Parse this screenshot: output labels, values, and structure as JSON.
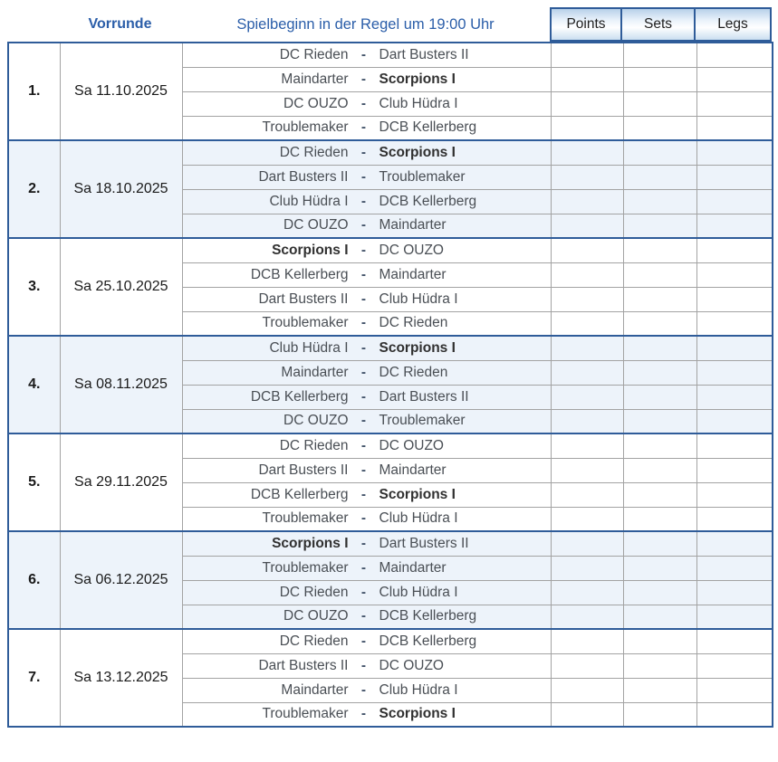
{
  "header": {
    "stage_label": "Vorrunde",
    "info_text": "Spielbeginn in der Regel um 19:00 Uhr",
    "score_columns": [
      "Points",
      "Sets",
      "Legs"
    ]
  },
  "separator": "-",
  "colors": {
    "accent_blue_text": "#2b5ea9",
    "block_border_blue": "#2f5c99",
    "grid_gray": "#a3a3a3",
    "shaded_row_blue": "#edf3fa"
  },
  "rounds": [
    {
      "number": "1.",
      "date": "Sa 11.10.2025",
      "matches": [
        {
          "home": "DC Rieden",
          "away": "Dart Busters II",
          "home_bold": false,
          "away_bold": false,
          "points": "",
          "sets": "",
          "legs": ""
        },
        {
          "home": "Maindarter",
          "away": "Scorpions I",
          "home_bold": false,
          "away_bold": true,
          "points": "",
          "sets": "",
          "legs": ""
        },
        {
          "home": "DC OUZO",
          "away": "Club Hüdra I",
          "home_bold": false,
          "away_bold": false,
          "points": "",
          "sets": "",
          "legs": ""
        },
        {
          "home": "Troublemaker",
          "away": "DCB Kellerberg",
          "home_bold": false,
          "away_bold": false,
          "points": "",
          "sets": "",
          "legs": ""
        }
      ]
    },
    {
      "number": "2.",
      "date": "Sa 18.10.2025",
      "matches": [
        {
          "home": "DC Rieden",
          "away": "Scorpions I",
          "home_bold": false,
          "away_bold": true,
          "points": "",
          "sets": "",
          "legs": ""
        },
        {
          "home": "Dart Busters II",
          "away": "Troublemaker",
          "home_bold": false,
          "away_bold": false,
          "points": "",
          "sets": "",
          "legs": ""
        },
        {
          "home": "Club Hüdra I",
          "away": "DCB Kellerberg",
          "home_bold": false,
          "away_bold": false,
          "points": "",
          "sets": "",
          "legs": ""
        },
        {
          "home": "DC OUZO",
          "away": "Maindarter",
          "home_bold": false,
          "away_bold": false,
          "points": "",
          "sets": "",
          "legs": ""
        }
      ]
    },
    {
      "number": "3.",
      "date": "Sa 25.10.2025",
      "matches": [
        {
          "home": "Scorpions I",
          "away": "DC OUZO",
          "home_bold": true,
          "away_bold": false,
          "points": "",
          "sets": "",
          "legs": ""
        },
        {
          "home": "DCB Kellerberg",
          "away": "Maindarter",
          "home_bold": false,
          "away_bold": false,
          "points": "",
          "sets": "",
          "legs": ""
        },
        {
          "home": "Dart Busters II",
          "away": "Club Hüdra I",
          "home_bold": false,
          "away_bold": false,
          "points": "",
          "sets": "",
          "legs": ""
        },
        {
          "home": "Troublemaker",
          "away": "DC Rieden",
          "home_bold": false,
          "away_bold": false,
          "points": "",
          "sets": "",
          "legs": ""
        }
      ]
    },
    {
      "number": "4.",
      "date": "Sa 08.11.2025",
      "matches": [
        {
          "home": "Club Hüdra I",
          "away": "Scorpions I",
          "home_bold": false,
          "away_bold": true,
          "points": "",
          "sets": "",
          "legs": ""
        },
        {
          "home": "Maindarter",
          "away": "DC Rieden",
          "home_bold": false,
          "away_bold": false,
          "points": "",
          "sets": "",
          "legs": ""
        },
        {
          "home": "DCB Kellerberg",
          "away": "Dart Busters II",
          "home_bold": false,
          "away_bold": false,
          "points": "",
          "sets": "",
          "legs": ""
        },
        {
          "home": "DC OUZO",
          "away": "Troublemaker",
          "home_bold": false,
          "away_bold": false,
          "points": "",
          "sets": "",
          "legs": ""
        }
      ]
    },
    {
      "number": "5.",
      "date": "Sa 29.11.2025",
      "matches": [
        {
          "home": "DC Rieden",
          "away": "DC OUZO",
          "home_bold": false,
          "away_bold": false,
          "points": "",
          "sets": "",
          "legs": ""
        },
        {
          "home": "Dart Busters II",
          "away": "Maindarter",
          "home_bold": false,
          "away_bold": false,
          "points": "",
          "sets": "",
          "legs": ""
        },
        {
          "home": "DCB Kellerberg",
          "away": "Scorpions I",
          "home_bold": false,
          "away_bold": true,
          "points": "",
          "sets": "",
          "legs": ""
        },
        {
          "home": "Troublemaker",
          "away": "Club Hüdra I",
          "home_bold": false,
          "away_bold": false,
          "points": "",
          "sets": "",
          "legs": ""
        }
      ]
    },
    {
      "number": "6.",
      "date": "Sa 06.12.2025",
      "matches": [
        {
          "home": "Scorpions I",
          "away": "Dart Busters II",
          "home_bold": true,
          "away_bold": false,
          "points": "",
          "sets": "",
          "legs": ""
        },
        {
          "home": "Troublemaker",
          "away": "Maindarter",
          "home_bold": false,
          "away_bold": false,
          "points": "",
          "sets": "",
          "legs": ""
        },
        {
          "home": "DC Rieden",
          "away": "Club Hüdra I",
          "home_bold": false,
          "away_bold": false,
          "points": "",
          "sets": "",
          "legs": ""
        },
        {
          "home": "DC OUZO",
          "away": "DCB Kellerberg",
          "home_bold": false,
          "away_bold": false,
          "points": "",
          "sets": "",
          "legs": ""
        }
      ]
    },
    {
      "number": "7.",
      "date": "Sa 13.12.2025",
      "matches": [
        {
          "home": "DC Rieden",
          "away": "DCB Kellerberg",
          "home_bold": false,
          "away_bold": false,
          "points": "",
          "sets": "",
          "legs": ""
        },
        {
          "home": "Dart Busters II",
          "away": "DC OUZO",
          "home_bold": false,
          "away_bold": false,
          "points": "",
          "sets": "",
          "legs": ""
        },
        {
          "home": "Maindarter",
          "away": "Club Hüdra I",
          "home_bold": false,
          "away_bold": false,
          "points": "",
          "sets": "",
          "legs": ""
        },
        {
          "home": "Troublemaker",
          "away": "Scorpions I",
          "home_bold": false,
          "away_bold": true,
          "points": "",
          "sets": "",
          "legs": ""
        }
      ]
    }
  ]
}
